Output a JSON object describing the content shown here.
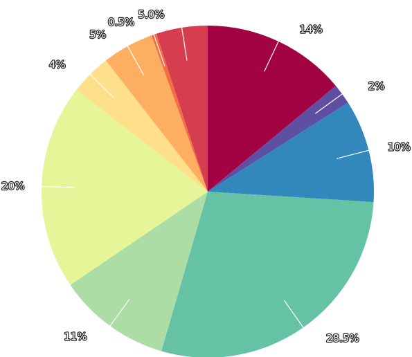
{
  "chart_data": {
    "type": "pie",
    "start_angle_deg": 0,
    "direction": "clockwise",
    "slices": [
      {
        "label": "14%",
        "value": 14,
        "color": "#a20342"
      },
      {
        "label": "2%",
        "value": 2,
        "color": "#5e4fa2"
      },
      {
        "label": "10%",
        "value": 10,
        "color": "#3288bd"
      },
      {
        "label": "28.5%",
        "value": 28.5,
        "color": "#66c2a5"
      },
      {
        "label": "11%",
        "value": 11,
        "color": "#abdda4"
      },
      {
        "label": "20%",
        "value": 20,
        "color": "#e6f598"
      },
      {
        "label": "4%",
        "value": 4,
        "color": "#fee08b"
      },
      {
        "label": "5%",
        "value": 5,
        "color": "#fdae61"
      },
      {
        "label": "0.5%",
        "value": 0.5,
        "color": "#f46d43"
      },
      {
        "label": "5.0%",
        "value": 5.0,
        "color": "#d53e4f"
      }
    ]
  }
}
